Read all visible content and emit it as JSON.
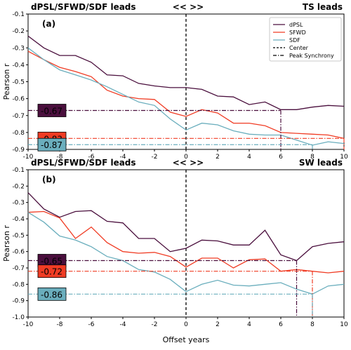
{
  "chart_data": [
    {
      "type": "line",
      "panel_label": "(a)",
      "header_left": "dPSL/SFWD/SDF leads",
      "header_center": "<< >>",
      "header_right": "TS leads",
      "xlabel": "",
      "ylabel": "Pearson r",
      "xlim": [
        -10,
        10
      ],
      "ylim": [
        -0.9,
        -0.1
      ],
      "xticks": [
        "-10",
        "-8",
        "-6",
        "-4",
        "-2",
        "0",
        "2",
        "4",
        "6",
        "8",
        "10"
      ],
      "yticks": [
        "-0.1",
        "-0.2",
        "-0.3",
        "-0.4",
        "-0.5",
        "-0.6",
        "-0.7",
        "-0.8",
        "-0.9"
      ],
      "x": [
        -10,
        -9,
        -8,
        -7,
        -6,
        -5,
        -4,
        -3,
        -2,
        -1,
        0,
        1,
        2,
        3,
        4,
        5,
        6,
        7,
        8,
        9,
        10
      ],
      "series": [
        {
          "name": "dPSL",
          "color": "#4a0f3d",
          "values": [
            -0.23,
            -0.3,
            -0.345,
            -0.345,
            -0.385,
            -0.46,
            -0.465,
            -0.51,
            -0.525,
            -0.535,
            -0.535,
            -0.545,
            -0.585,
            -0.59,
            -0.635,
            -0.62,
            -0.665,
            -0.665,
            -0.65,
            -0.64,
            -0.645
          ]
        },
        {
          "name": "SFWD",
          "color": "#f03c24",
          "values": [
            -0.32,
            -0.37,
            -0.415,
            -0.44,
            -0.47,
            -0.55,
            -0.585,
            -0.6,
            -0.605,
            -0.68,
            -0.705,
            -0.665,
            -0.685,
            -0.745,
            -0.745,
            -0.76,
            -0.8,
            -0.805,
            -0.81,
            -0.815,
            -0.835
          ]
        },
        {
          "name": "SDF",
          "color": "#6aaebd",
          "values": [
            -0.3,
            -0.37,
            -0.43,
            -0.46,
            -0.49,
            -0.53,
            -0.575,
            -0.62,
            -0.64,
            -0.72,
            -0.785,
            -0.745,
            -0.755,
            -0.79,
            -0.81,
            -0.815,
            -0.815,
            -0.845,
            -0.875,
            -0.855,
            -0.865
          ]
        }
      ],
      "legend": [
        "dPSL",
        "SFWD",
        "SDF",
        "Center",
        "Peak Synchrony"
      ],
      "legend_position": "top-right",
      "center_line_x": 0,
      "peak_synchrony": [
        {
          "series": "dPSL",
          "x": 6,
          "r": -0.67,
          "label": "-0.67",
          "color": "#4a0f3d"
        },
        {
          "series": "SFWD",
          "x": 10,
          "r": -0.835,
          "label": "-0.83",
          "color": "#f03c24"
        },
        {
          "series": "SDF",
          "x": 8,
          "r": -0.872,
          "label": "-0.87",
          "color": "#6aaebd"
        }
      ]
    },
    {
      "type": "line",
      "panel_label": "(b)",
      "header_left": "dPSL/SFWD/SDF leads",
      "header_center": "<< >>",
      "header_right": "SW leads",
      "xlabel": "Offset years",
      "ylabel": "Pearson r",
      "xlim": [
        -10,
        10
      ],
      "ylim": [
        -1.0,
        -0.1
      ],
      "xticks": [
        "-10",
        "-8",
        "-6",
        "-4",
        "-2",
        "0",
        "2",
        "4",
        "6",
        "8",
        "10"
      ],
      "yticks": [
        "-0.1",
        "-0.2",
        "-0.3",
        "-0.4",
        "-0.5",
        "-0.6",
        "-0.7",
        "-0.8",
        "-0.9",
        "-1.0"
      ],
      "x": [
        -10,
        -9,
        -8,
        -7,
        -6,
        -5,
        -4,
        -3,
        -2,
        -1,
        0,
        1,
        2,
        3,
        4,
        5,
        6,
        7,
        8,
        9,
        10
      ],
      "series": [
        {
          "name": "dPSL",
          "color": "#4a0f3d",
          "values": [
            -0.24,
            -0.34,
            -0.39,
            -0.355,
            -0.35,
            -0.415,
            -0.425,
            -0.52,
            -0.52,
            -0.6,
            -0.58,
            -0.53,
            -0.535,
            -0.56,
            -0.56,
            -0.47,
            -0.62,
            -0.655,
            -0.57,
            -0.55,
            -0.54
          ]
        },
        {
          "name": "SFWD",
          "color": "#f03c24",
          "values": [
            -0.36,
            -0.355,
            -0.395,
            -0.52,
            -0.45,
            -0.545,
            -0.6,
            -0.61,
            -0.605,
            -0.63,
            -0.695,
            -0.64,
            -0.64,
            -0.7,
            -0.65,
            -0.645,
            -0.72,
            -0.71,
            -0.72,
            -0.73,
            -0.72
          ]
        },
        {
          "name": "SDF",
          "color": "#6aaebd",
          "values": [
            -0.36,
            -0.42,
            -0.505,
            -0.53,
            -0.57,
            -0.63,
            -0.655,
            -0.71,
            -0.725,
            -0.77,
            -0.845,
            -0.8,
            -0.775,
            -0.805,
            -0.81,
            -0.8,
            -0.79,
            -0.83,
            -0.86,
            -0.81,
            -0.8
          ]
        }
      ],
      "legend": [],
      "center_line_x": 0,
      "peak_synchrony": [
        {
          "series": "dPSL",
          "x": 7,
          "r": -0.655,
          "label": "-0.65",
          "color": "#4a0f3d"
        },
        {
          "series": "SFWD",
          "x": 8,
          "r": -0.72,
          "label": "-0.72",
          "color": "#f03c24"
        },
        {
          "series": "SDF",
          "x": 8,
          "r": -0.86,
          "label": "-0.86",
          "color": "#6aaebd"
        }
      ]
    }
  ]
}
